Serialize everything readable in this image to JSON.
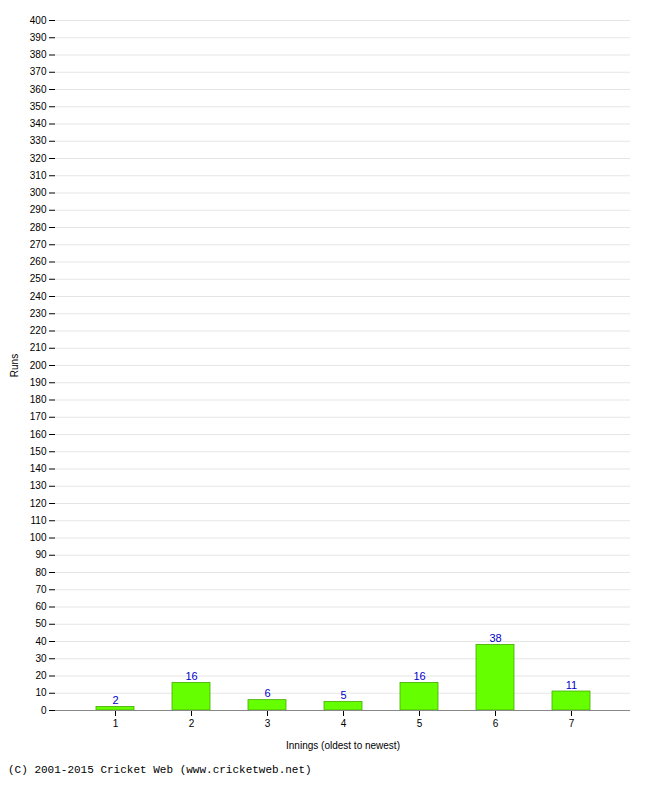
{
  "chart_data": {
    "type": "bar",
    "categories": [
      "1",
      "2",
      "3",
      "4",
      "5",
      "6",
      "7"
    ],
    "values": [
      2,
      16,
      6,
      5,
      16,
      38,
      11
    ],
    "color": "#66ff00",
    "xlabel": "Innings (oldest to newest)",
    "ylabel": "Runs",
    "ylim": [
      0,
      400
    ],
    "yticks": [
      0,
      10,
      20,
      30,
      40,
      50,
      60,
      70,
      80,
      90,
      100,
      110,
      120,
      130,
      140,
      150,
      160,
      170,
      180,
      190,
      200,
      210,
      220,
      230,
      240,
      250,
      260,
      270,
      280,
      290,
      300,
      310,
      320,
      330,
      340,
      350,
      360,
      370,
      380,
      390,
      400
    ],
    "grid": true,
    "data_labels": true,
    "caption": "(C) 2001-2015 Cricket Web (www.cricketweb.net)"
  }
}
